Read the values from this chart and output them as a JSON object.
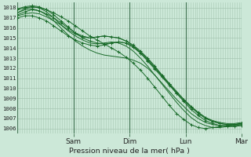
{
  "xlabel": "Pression niveau de la mer( hPa )",
  "ylim": [
    1005.5,
    1018.5
  ],
  "yticks": [
    1006,
    1007,
    1008,
    1009,
    1010,
    1011,
    1012,
    1013,
    1014,
    1015,
    1016,
    1017,
    1018
  ],
  "day_labels": [
    "Sam",
    "Dim",
    "Lun",
    "Mar"
  ],
  "day_positions": [
    0.25,
    0.5,
    0.75,
    1.0
  ],
  "bg_color": "#cce8d8",
  "grid_color": "#a8c8b4",
  "line_color": "#1a6b2a",
  "series": [
    [
      1017.8,
      1018.0,
      1018.1,
      1018.0,
      1017.8,
      1017.5,
      1017.1,
      1016.7,
      1016.2,
      1015.7,
      1015.2,
      1014.8,
      1014.4,
      1014.0,
      1013.6,
      1013.1,
      1012.5,
      1011.8,
      1011.0,
      1010.1,
      1009.2,
      1008.3,
      1007.5,
      1006.9,
      1006.4,
      1006.1,
      1006.0,
      1006.1,
      1006.2,
      1006.3,
      1006.4,
      1006.5
    ],
    [
      1017.5,
      1017.9,
      1018.1,
      1018.0,
      1017.6,
      1017.0,
      1016.3,
      1015.7,
      1015.2,
      1014.8,
      1014.5,
      1014.4,
      1014.5,
      1014.6,
      1014.5,
      1014.2,
      1013.7,
      1013.0,
      1012.2,
      1011.3,
      1010.4,
      1009.5,
      1008.6,
      1007.8,
      1007.1,
      1006.6,
      1006.3,
      1006.1,
      1006.1,
      1006.2,
      1006.3,
      1006.4
    ],
    [
      1017.3,
      1017.6,
      1017.8,
      1017.7,
      1017.4,
      1017.0,
      1016.5,
      1016.0,
      1015.5,
      1015.2,
      1015.0,
      1015.1,
      1015.2,
      1015.1,
      1015.0,
      1014.7,
      1014.3,
      1013.7,
      1013.0,
      1012.2,
      1011.3,
      1010.4,
      1009.5,
      1008.7,
      1007.9,
      1007.3,
      1006.8,
      1006.5,
      1006.3,
      1006.2,
      1006.2,
      1006.3
    ],
    [
      1017.2,
      1017.4,
      1017.5,
      1017.4,
      1017.1,
      1016.7,
      1016.3,
      1015.8,
      1015.4,
      1015.1,
      1015.0,
      1015.1,
      1015.2,
      1015.1,
      1015.0,
      1014.7,
      1014.2,
      1013.6,
      1012.9,
      1012.1,
      1011.3,
      1010.5,
      1009.7,
      1008.9,
      1008.2,
      1007.6,
      1007.1,
      1006.8,
      1006.6,
      1006.5,
      1006.5,
      1006.6
    ],
    [
      1017.0,
      1017.2,
      1017.2,
      1017.0,
      1016.7,
      1016.2,
      1015.7,
      1015.2,
      1014.8,
      1014.5,
      1014.3,
      1014.2,
      1014.3,
      1014.5,
      1014.6,
      1014.5,
      1014.1,
      1013.5,
      1012.7,
      1011.9,
      1011.1,
      1010.3,
      1009.5,
      1008.8,
      1008.1,
      1007.5,
      1007.0,
      1006.7,
      1006.5,
      1006.4,
      1006.4,
      1006.5
    ],
    [
      1017.5,
      1017.8,
      1017.9,
      1017.7,
      1017.3,
      1016.7,
      1016.0,
      1015.3,
      1014.7,
      1014.2,
      1013.8,
      1013.5,
      1013.3,
      1013.2,
      1013.1,
      1013.0,
      1012.8,
      1012.5,
      1012.0,
      1011.3,
      1010.5,
      1009.7,
      1008.9,
      1008.2,
      1007.5,
      1007.0,
      1006.6,
      1006.4,
      1006.3,
      1006.3,
      1006.3,
      1006.4
    ],
    [
      1017.9,
      1018.1,
      1018.2,
      1018.1,
      1017.8,
      1017.3,
      1016.7,
      1016.1,
      1015.5,
      1015.0,
      1014.7,
      1014.5,
      1014.4,
      1014.5,
      1014.6,
      1014.5,
      1014.1,
      1013.5,
      1012.8,
      1012.0,
      1011.2,
      1010.4,
      1009.6,
      1008.9,
      1008.2,
      1007.6,
      1007.1,
      1006.7,
      1006.5,
      1006.4,
      1006.4,
      1006.5
    ]
  ],
  "marker_indices": [
    0,
    2,
    4,
    6
  ],
  "xlim_start": 0.0,
  "n_vert_grid": 96
}
